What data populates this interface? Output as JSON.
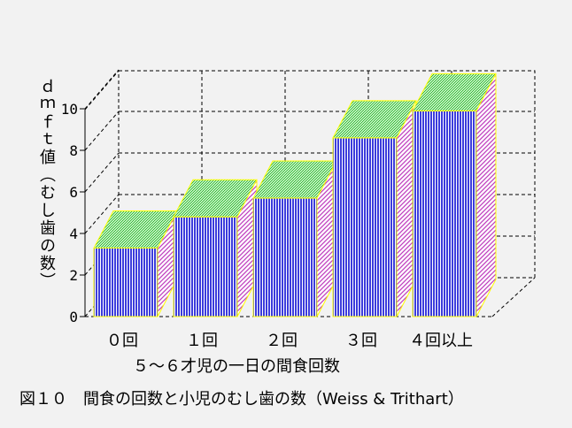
{
  "chart_data": {
    "type": "bar",
    "style": "3d",
    "categories": [
      "０回",
      "１回",
      "２回",
      "３回",
      "４回以上"
    ],
    "values": [
      3.3,
      4.8,
      5.7,
      8.6,
      9.9
    ],
    "ylabel": "ｄｍｆｔ値（むし歯の数）",
    "xlabel": "５～６才児の一日の間食回数",
    "ylim": [
      0,
      10
    ],
    "yticks": [
      0,
      2,
      4,
      6,
      8,
      10
    ],
    "grid": true,
    "colors": {
      "front": "#3c3cdc",
      "top": "#5fd35f",
      "side": "#c848c8",
      "edge": "#ffff00"
    }
  },
  "caption": "図１０　間食の回数と小児のむし歯の数（Weiss & Trithart）"
}
